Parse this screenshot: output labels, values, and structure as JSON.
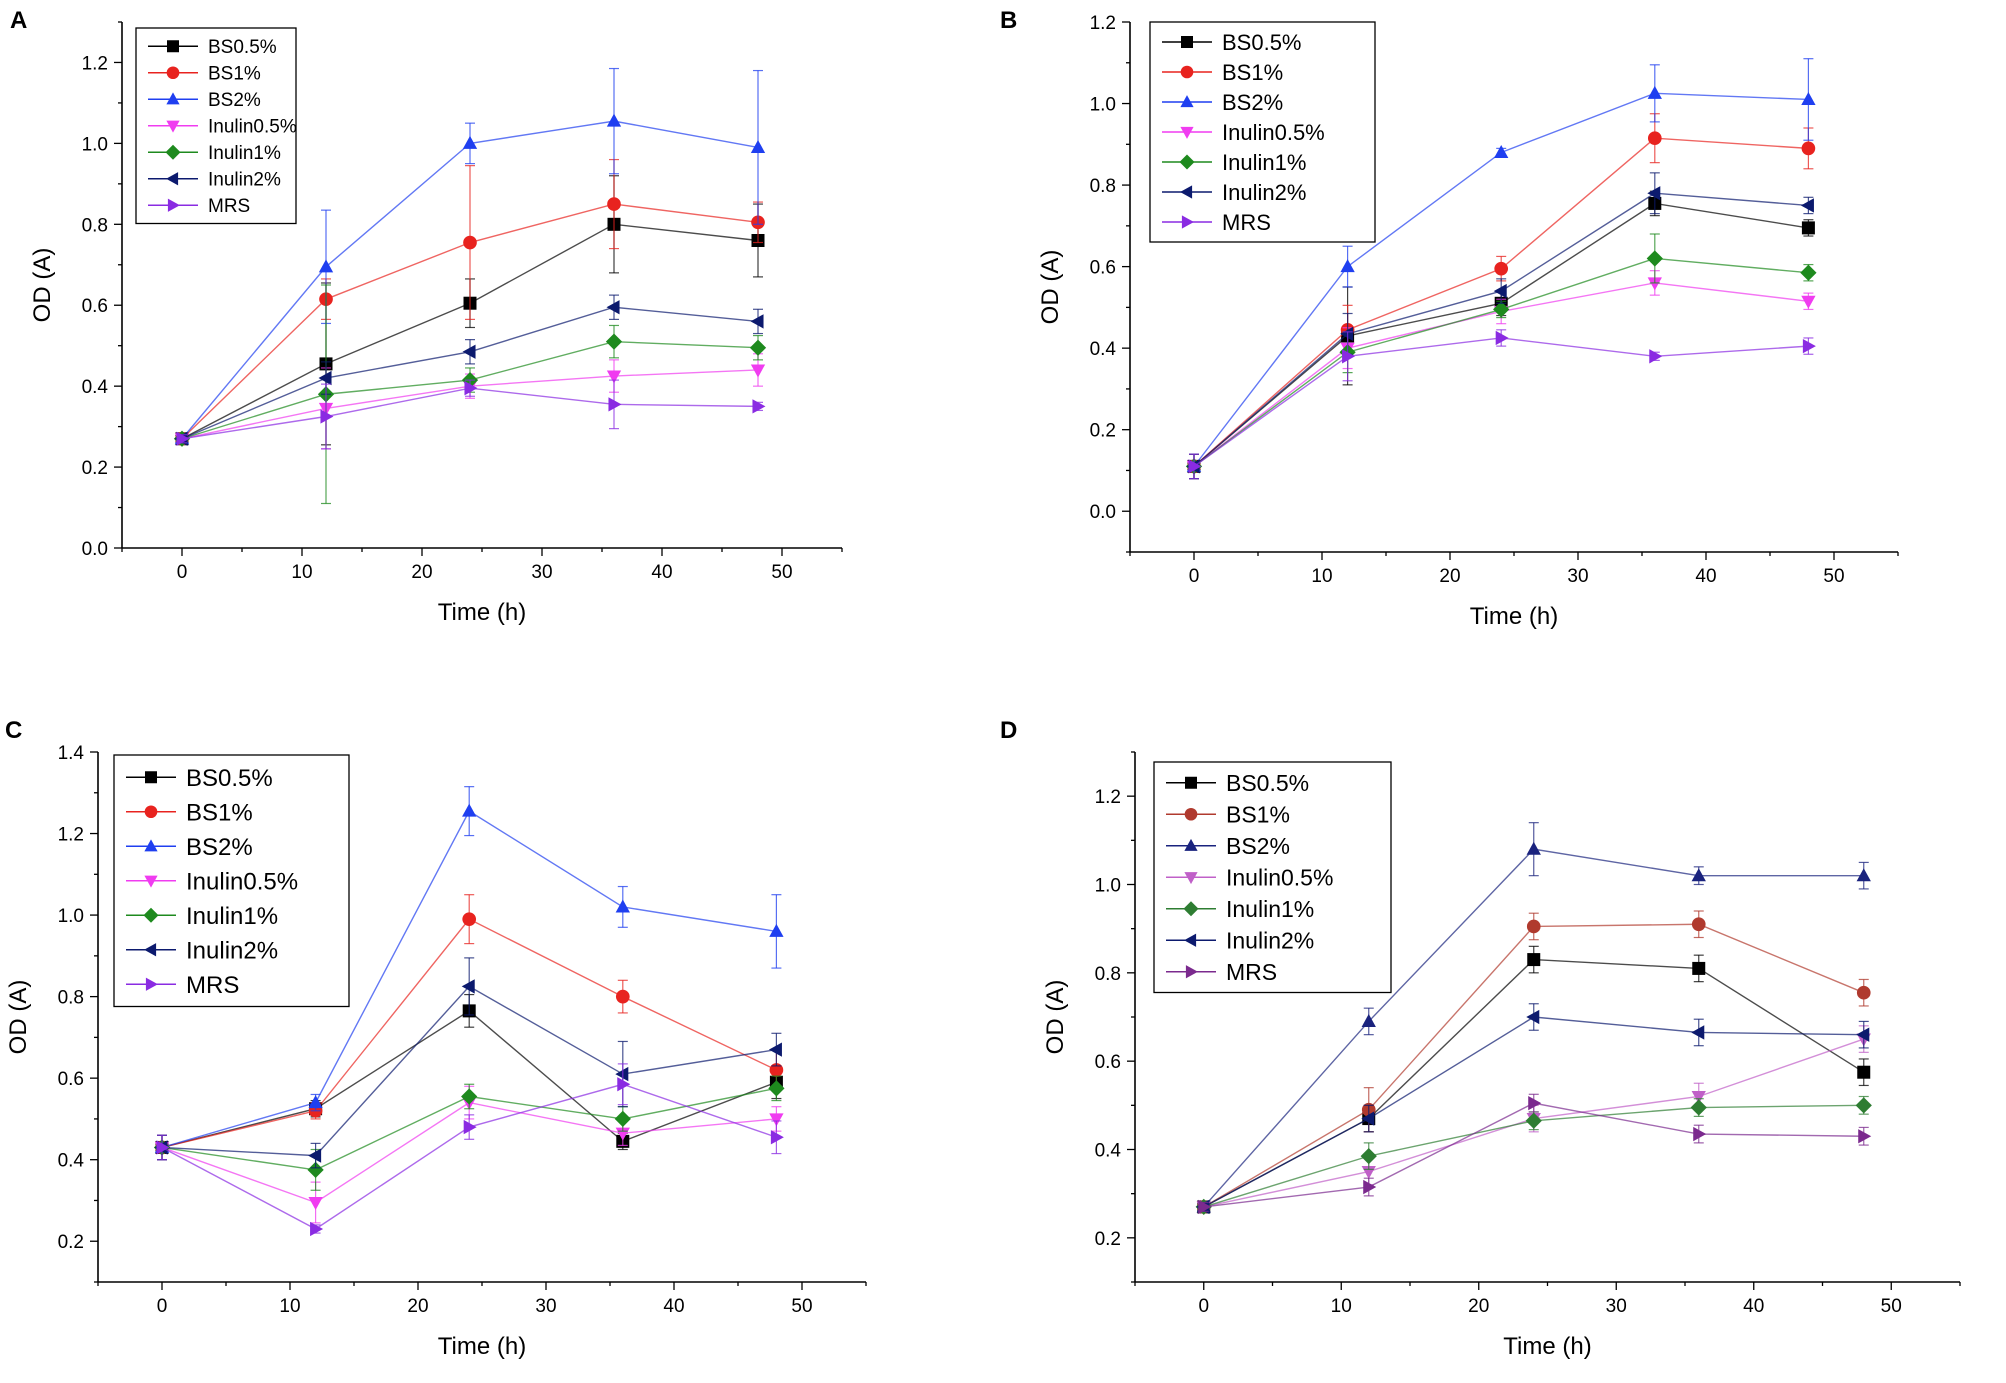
{
  "colors": {
    "BS0.5%": "#000000",
    "BS1%": "#e8231f",
    "BS2%": "#1f3ff0",
    "Inulin0.5%": "#f03cf0",
    "Inulin1%": "#1e8a1e",
    "Inulin2%": "#0c1a6e",
    "MRS": "#8a2be2",
    "D_BS1%": "#b03a2e",
    "D_BS2%": "#1a237e",
    "D_Inulin0.5%": "#c060c8",
    "D_Inulin1%": "#2e7d32",
    "D_MRS": "#7b2a8e"
  },
  "chart_data": [
    {
      "panel": "A",
      "type": "line",
      "xlabel": "Time (h)",
      "ylabel": "OD (A)",
      "xlim": [
        -5,
        55
      ],
      "ylim": [
        0,
        1.3
      ],
      "xticks": [
        0,
        10,
        20,
        30,
        40,
        50
      ],
      "yticks": [
        0.0,
        0.2,
        0.4,
        0.6,
        0.8,
        1.0,
        1.2
      ],
      "ytick_decimals": 1,
      "legend": "top-left",
      "x": [
        0,
        12,
        24,
        36,
        48
      ],
      "series": [
        {
          "name": "BS0.5%",
          "marker": "square",
          "color": "#000000",
          "values": [
            0.27,
            0.455,
            0.605,
            0.8,
            0.76
          ],
          "errors": [
            0.01,
            0.2,
            0.06,
            0.12,
            0.09
          ]
        },
        {
          "name": "BS1%",
          "marker": "circle",
          "color": "#e8231f",
          "values": [
            0.27,
            0.615,
            0.755,
            0.85,
            0.805
          ],
          "errors": [
            0.01,
            0.05,
            0.19,
            0.11,
            0.05
          ]
        },
        {
          "name": "BS2%",
          "marker": "triangle-up",
          "color": "#1f3ff0",
          "values": [
            0.27,
            0.695,
            1.0,
            1.055,
            0.99
          ],
          "errors": [
            0.01,
            0.14,
            0.05,
            0.13,
            0.19
          ]
        },
        {
          "name": "Inulin0.5%",
          "marker": "triangle-down",
          "color": "#f03cf0",
          "values": [
            0.27,
            0.345,
            0.4,
            0.425,
            0.44
          ],
          "errors": [
            0.01,
            0.1,
            0.03,
            0.04,
            0.04
          ]
        },
        {
          "name": "Inulin1%",
          "marker": "diamond",
          "color": "#1e8a1e",
          "values": [
            0.27,
            0.38,
            0.415,
            0.51,
            0.495
          ],
          "errors": [
            0.01,
            0.27,
            0.03,
            0.04,
            0.03
          ]
        },
        {
          "name": "Inulin2%",
          "marker": "triangle-left",
          "color": "#0c1a6e",
          "values": [
            0.27,
            0.42,
            0.485,
            0.595,
            0.56
          ],
          "errors": [
            0.01,
            0.04,
            0.03,
            0.03,
            0.03
          ]
        },
        {
          "name": "MRS",
          "marker": "triangle-right",
          "color": "#8a2be2",
          "values": [
            0.27,
            0.325,
            0.395,
            0.355,
            0.35
          ],
          "errors": [
            0.01,
            0.08,
            0.02,
            0.06,
            0.01
          ]
        }
      ]
    },
    {
      "panel": "B",
      "type": "line",
      "xlabel": "Time (h)",
      "ylabel": "OD (A)",
      "xlim": [
        -5,
        55
      ],
      "ylim": [
        -0.1,
        1.2
      ],
      "xticks": [
        0,
        10,
        20,
        30,
        40,
        50
      ],
      "yticks": [
        0.0,
        0.2,
        0.4,
        0.6,
        0.8,
        1.0,
        1.2
      ],
      "ytick_decimals": 1,
      "legend": "top-left",
      "x": [
        0,
        12,
        24,
        36,
        48
      ],
      "series": [
        {
          "name": "BS0.5%",
          "marker": "square",
          "color": "#000000",
          "values": [
            0.11,
            0.43,
            0.51,
            0.755,
            0.695
          ],
          "errors": [
            0.03,
            0.12,
            0.03,
            0.03,
            0.02
          ]
        },
        {
          "name": "BS1%",
          "marker": "circle",
          "color": "#e8231f",
          "values": [
            0.11,
            0.445,
            0.595,
            0.915,
            0.89
          ],
          "errors": [
            0.03,
            0.06,
            0.03,
            0.06,
            0.05
          ]
        },
        {
          "name": "BS2%",
          "marker": "triangle-up",
          "color": "#1f3ff0",
          "values": [
            0.11,
            0.6,
            0.88,
            1.025,
            1.01
          ],
          "errors": [
            0.03,
            0.05,
            0.01,
            0.07,
            0.1
          ]
        },
        {
          "name": "Inulin0.5%",
          "marker": "triangle-down",
          "color": "#f03cf0",
          "values": [
            0.11,
            0.4,
            0.49,
            0.56,
            0.515
          ],
          "errors": [
            0.03,
            0.05,
            0.03,
            0.03,
            0.02
          ]
        },
        {
          "name": "Inulin1%",
          "marker": "diamond",
          "color": "#1e8a1e",
          "values": [
            0.11,
            0.39,
            0.495,
            0.62,
            0.585
          ],
          "errors": [
            0.03,
            0.05,
            0.02,
            0.06,
            0.02
          ]
        },
        {
          "name": "Inulin2%",
          "marker": "triangle-left",
          "color": "#0c1a6e",
          "values": [
            0.11,
            0.435,
            0.54,
            0.78,
            0.75
          ],
          "errors": [
            0.03,
            0.05,
            0.03,
            0.05,
            0.02
          ]
        },
        {
          "name": "MRS",
          "marker": "triangle-right",
          "color": "#8a2be2",
          "values": [
            0.11,
            0.38,
            0.425,
            0.38,
            0.405
          ],
          "errors": [
            0.03,
            0.06,
            0.02,
            0.01,
            0.02
          ]
        }
      ]
    },
    {
      "panel": "C",
      "type": "line",
      "xlabel": "Time (h)",
      "ylabel": "OD (A)",
      "xlim": [
        -5,
        55
      ],
      "ylim": [
        0.1,
        1.4
      ],
      "xticks": [
        0,
        10,
        20,
        30,
        40,
        50
      ],
      "yticks": [
        0.2,
        0.4,
        0.6,
        0.8,
        1.0,
        1.2,
        1.4
      ],
      "ytick_decimals": 1,
      "legend": "top-left",
      "x": [
        0,
        12,
        24,
        36,
        48
      ],
      "series": [
        {
          "name": "BS0.5%",
          "marker": "square",
          "color": "#000000",
          "values": [
            0.43,
            0.525,
            0.765,
            0.445,
            0.59
          ],
          "errors": [
            0.03,
            0.02,
            0.04,
            0.02,
            0.04
          ]
        },
        {
          "name": "BS1%",
          "marker": "circle",
          "color": "#e8231f",
          "values": [
            0.43,
            0.52,
            0.99,
            0.8,
            0.62
          ],
          "errors": [
            0.03,
            0.02,
            0.06,
            0.04,
            0.05
          ]
        },
        {
          "name": "BS2%",
          "marker": "triangle-up",
          "color": "#1f3ff0",
          "values": [
            0.43,
            0.54,
            1.255,
            1.02,
            0.96
          ],
          "errors": [
            0.03,
            0.02,
            0.06,
            0.05,
            0.09
          ]
        },
        {
          "name": "Inulin0.5%",
          "marker": "triangle-down",
          "color": "#f03cf0",
          "values": [
            0.43,
            0.295,
            0.54,
            0.465,
            0.5
          ],
          "errors": [
            0.03,
            0.05,
            0.04,
            0.03,
            0.03
          ]
        },
        {
          "name": "Inulin1%",
          "marker": "diamond",
          "color": "#1e8a1e",
          "values": [
            0.43,
            0.375,
            0.555,
            0.5,
            0.575
          ],
          "errors": [
            0.03,
            0.05,
            0.03,
            0.03,
            0.03
          ]
        },
        {
          "name": "Inulin2%",
          "marker": "triangle-left",
          "color": "#0c1a6e",
          "values": [
            0.43,
            0.41,
            0.825,
            0.61,
            0.67
          ],
          "errors": [
            0.03,
            0.03,
            0.07,
            0.08,
            0.04
          ]
        },
        {
          "name": "MRS",
          "marker": "triangle-right",
          "color": "#8a2be2",
          "values": [
            0.43,
            0.23,
            0.48,
            0.585,
            0.455
          ],
          "errors": [
            0.03,
            0.01,
            0.03,
            0.05,
            0.04
          ]
        }
      ]
    },
    {
      "panel": "D",
      "type": "line",
      "xlabel": "Time (h)",
      "ylabel": "OD (A)",
      "xlim": [
        -5,
        55
      ],
      "ylim": [
        0.1,
        1.3
      ],
      "xticks": [
        0,
        10,
        20,
        30,
        40,
        50
      ],
      "yticks": [
        0.2,
        0.4,
        0.6,
        0.8,
        1.0,
        1.2
      ],
      "ytick_decimals": 1,
      "legend": "top-left",
      "x": [
        0,
        12,
        24,
        36,
        48
      ],
      "series": [
        {
          "name": "BS0.5%",
          "marker": "square",
          "color": "#000000",
          "values": [
            0.27,
            0.47,
            0.83,
            0.81,
            0.575
          ],
          "errors": [
            0.01,
            0.03,
            0.03,
            0.03,
            0.03
          ]
        },
        {
          "name": "BS1%",
          "marker": "circle",
          "color": "#b03a2e",
          "values": [
            0.27,
            0.49,
            0.905,
            0.91,
            0.755
          ],
          "errors": [
            0.01,
            0.05,
            0.03,
            0.03,
            0.03
          ]
        },
        {
          "name": "BS2%",
          "marker": "triangle-up",
          "color": "#1a237e",
          "values": [
            0.27,
            0.69,
            1.08,
            1.02,
            1.02
          ],
          "errors": [
            0.01,
            0.03,
            0.06,
            0.02,
            0.03
          ]
        },
        {
          "name": "Inulin0.5%",
          "marker": "triangle-down",
          "color": "#c060c8",
          "values": [
            0.27,
            0.35,
            0.47,
            0.52,
            0.65
          ],
          "errors": [
            0.01,
            0.03,
            0.03,
            0.03,
            0.03
          ]
        },
        {
          "name": "Inulin1%",
          "marker": "diamond",
          "color": "#2e7d32",
          "values": [
            0.27,
            0.385,
            0.465,
            0.495,
            0.5
          ],
          "errors": [
            0.01,
            0.03,
            0.02,
            0.02,
            0.02
          ]
        },
        {
          "name": "Inulin2%",
          "marker": "triangle-left",
          "color": "#0c1a6e",
          "values": [
            0.27,
            0.47,
            0.7,
            0.665,
            0.66
          ],
          "errors": [
            0.01,
            0.03,
            0.03,
            0.03,
            0.03
          ]
        },
        {
          "name": "MRS",
          "marker": "triangle-right",
          "color": "#7b2a8e",
          "values": [
            0.27,
            0.315,
            0.505,
            0.435,
            0.43
          ],
          "errors": [
            0.01,
            0.02,
            0.02,
            0.02,
            0.02
          ]
        }
      ]
    }
  ]
}
